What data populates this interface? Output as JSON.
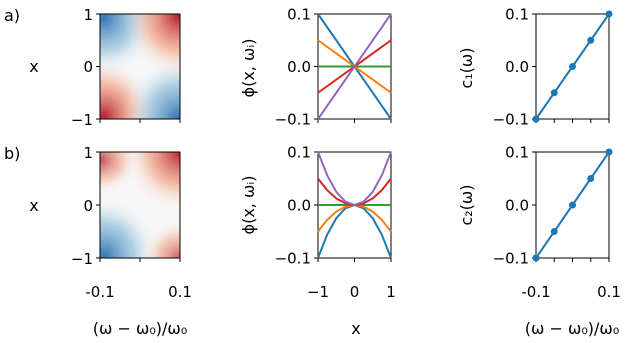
{
  "panel_labels": [
    "a)",
    "b)"
  ],
  "chart_data": [
    {
      "id": "heatmap-a",
      "type": "heatmap",
      "ylabel": "x",
      "xlabel": "",
      "xlim": [
        -0.1,
        0.1
      ],
      "ylim": [
        -1,
        1
      ],
      "xticks": [],
      "yticks": [
        "1",
        "0",
        "−1"
      ],
      "colormap": "RdBu_r",
      "function": "odd-odd: sign(w)*sign(x) pattern, red top-right and bottom-left, blue top-left and bottom-right"
    },
    {
      "id": "lines-a",
      "type": "line",
      "ylabel": "ϕ(x, ωᵢ)",
      "xlabel": "",
      "xlim": [
        -1,
        1
      ],
      "ylim": [
        -0.1,
        0.1
      ],
      "xticks": [],
      "yticks": [
        "0.1",
        "0.0",
        "−0.1"
      ],
      "x": [
        -1,
        1
      ],
      "series": [
        {
          "color": "#1f77b4",
          "values": [
            0.1,
            -0.1
          ]
        },
        {
          "color": "#ff7f0e",
          "values": [
            0.05,
            -0.05
          ]
        },
        {
          "color": "#2ca02c",
          "values": [
            0.0,
            0.0
          ]
        },
        {
          "color": "#d62728",
          "values": [
            -0.05,
            0.05
          ]
        },
        {
          "color": "#9467bd",
          "values": [
            -0.1,
            0.1
          ]
        }
      ]
    },
    {
      "id": "coef-a",
      "type": "line",
      "ylabel": "c₁(ω)",
      "xlabel": "",
      "xlim": [
        -0.1,
        0.1
      ],
      "ylim": [
        -0.1,
        0.1
      ],
      "xticks": [],
      "yticks": [
        "0.1",
        "0.0",
        "−0.1"
      ],
      "x": [
        -0.1,
        -0.05,
        0.0,
        0.05,
        0.1
      ],
      "values": [
        -0.1,
        -0.05,
        0.0,
        0.05,
        0.1
      ],
      "color": "#1f77b4"
    },
    {
      "id": "heatmap-b",
      "type": "heatmap",
      "ylabel": "x",
      "xlabel": "(ω − ω₀)/ω₀",
      "xlim": [
        -0.1,
        0.1
      ],
      "ylim": [
        -1,
        1
      ],
      "xticks": [
        "-0.1",
        "0.1"
      ],
      "yticks": [
        "1",
        "0",
        "−1"
      ],
      "colormap": "RdBu_r",
      "function": "odd-even: red top-right and top-left edge, blue bottom-left, red bottom-right"
    },
    {
      "id": "lines-b",
      "type": "line",
      "ylabel": "ϕ(x, ωᵢ)",
      "xlabel": "x",
      "xlim": [
        -1,
        1
      ],
      "ylim": [
        -0.1,
        0.1
      ],
      "xticks": [
        "−1",
        "0",
        "1"
      ],
      "yticks": [
        "0.1",
        "0.0",
        "−0.1"
      ],
      "x": [
        -1,
        -0.75,
        -0.5,
        -0.25,
        0,
        0.25,
        0.5,
        0.75,
        1
      ],
      "series": [
        {
          "color": "#1f77b4",
          "values": [
            -0.1,
            -0.05625,
            -0.025,
            -0.00625,
            0,
            -0.00625,
            -0.025,
            -0.05625,
            -0.1
          ]
        },
        {
          "color": "#ff7f0e",
          "values": [
            -0.05,
            -0.028125,
            -0.0125,
            -0.003125,
            0,
            -0.003125,
            -0.0125,
            -0.028125,
            -0.05
          ]
        },
        {
          "color": "#2ca02c",
          "values": [
            0,
            0,
            0,
            0,
            0,
            0,
            0,
            0,
            0
          ]
        },
        {
          "color": "#d62728",
          "values": [
            0.05,
            0.028125,
            0.0125,
            0.003125,
            0,
            0.003125,
            0.0125,
            0.028125,
            0.05
          ]
        },
        {
          "color": "#9467bd",
          "values": [
            0.1,
            0.05625,
            0.025,
            0.00625,
            0,
            0.00625,
            0.025,
            0.05625,
            0.1
          ]
        }
      ]
    },
    {
      "id": "coef-b",
      "type": "line",
      "ylabel": "c₂(ω)",
      "xlabel": "(ω − ω₀)/ω₀",
      "xlim": [
        -0.1,
        0.1
      ],
      "ylim": [
        -0.1,
        0.1
      ],
      "xticks": [
        "-0.1",
        "0.1"
      ],
      "yticks": [
        "0.1",
        "0.0",
        "−0.1"
      ],
      "x": [
        -0.1,
        -0.05,
        0.0,
        0.05,
        0.1
      ],
      "values": [
        -0.1,
        -0.05,
        0.0,
        0.05,
        0.1
      ],
      "color": "#1f77b4"
    }
  ]
}
